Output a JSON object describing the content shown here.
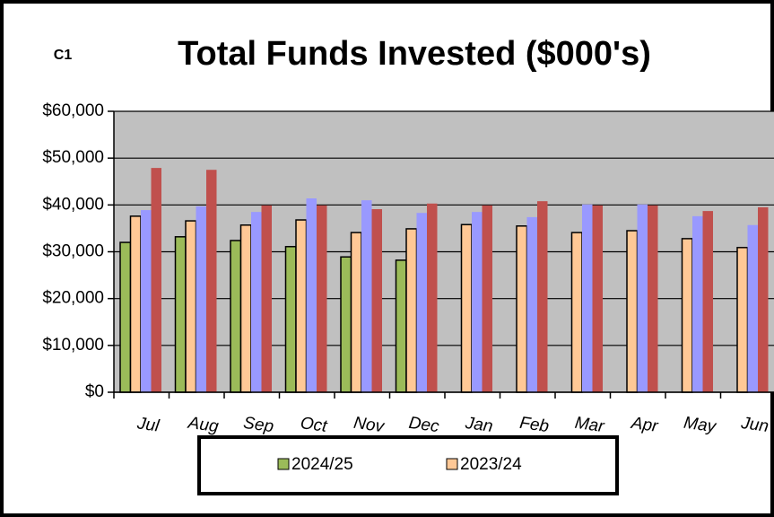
{
  "chart_data": {
    "type": "bar",
    "title": "Total Funds Invested ($000's)",
    "label": "C1",
    "categories": [
      "Jul",
      "Aug",
      "Sep",
      "Oct",
      "Nov",
      "Dec",
      "Jan",
      "Feb",
      "Mar",
      "Apr",
      "May",
      "Jun"
    ],
    "series": [
      {
        "name": "2024/25",
        "color": "#9bbb59",
        "values": [
          32000,
          33200,
          32400,
          31100,
          28900,
          28200,
          null,
          null,
          null,
          null,
          null,
          null
        ]
      },
      {
        "name": "2023/24",
        "color": "#ffc896",
        "values": [
          37600,
          36600,
          35700,
          36800,
          34100,
          34900,
          35800,
          35500,
          34100,
          34500,
          32800,
          30900
        ]
      },
      {
        "color": "#9999ff",
        "values": [
          38900,
          39700,
          38500,
          41400,
          41000,
          38300,
          38500,
          37400,
          40100,
          40100,
          37600,
          35700
        ]
      },
      {
        "color": "#c0504d",
        "values": [
          47900,
          47500,
          39900,
          39900,
          39100,
          40300,
          39900,
          40800,
          39900,
          39900,
          38700,
          39500
        ]
      }
    ],
    "ylim": [
      0,
      60000
    ],
    "yticks": [
      {
        "value": 0,
        "label": "$0"
      },
      {
        "value": 10000,
        "label": "$10,000"
      },
      {
        "value": 20000,
        "label": "$20,000"
      },
      {
        "value": 30000,
        "label": "$30,000"
      },
      {
        "value": 40000,
        "label": "$40,000"
      },
      {
        "value": 50000,
        "label": "$50,000"
      },
      {
        "value": 60000,
        "label": "$60,000"
      }
    ],
    "grid": true,
    "legend": "bottom"
  }
}
